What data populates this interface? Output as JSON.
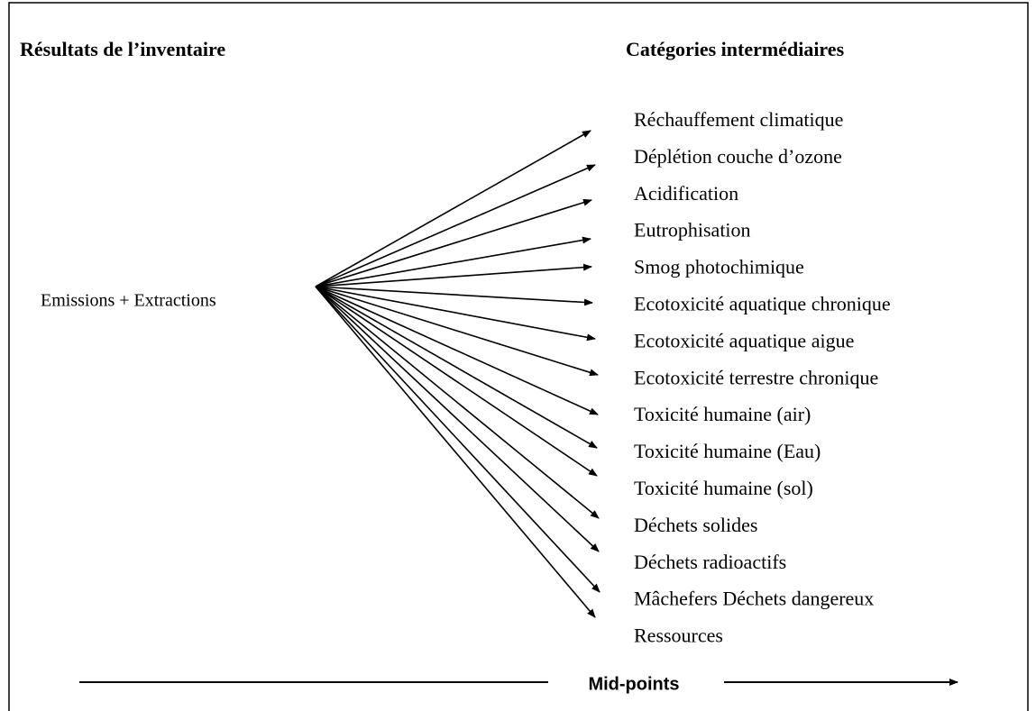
{
  "header": {
    "left_title": "Résultats de l’inventaire",
    "right_title": "Catégories intermédiaires"
  },
  "source": "Emissions + Extractions",
  "categories": [
    "Réchauffement climatique",
    "Déplétion couche d’ozone",
    "Acidification",
    "Eutrophisation",
    "Smog photochimique",
    "Ecotoxicité aquatique chronique",
    "Ecotoxicité aquatique aigue",
    "Ecotoxicité terrestre chronique",
    "Toxicité humaine (air)",
    "Toxicité humaine (Eau)",
    "Toxicité humaine (sol)",
    "Déchets solides",
    "Déchets radioactifs",
    "Mâchefers Déchets dangereux",
    "Ressources"
  ],
  "axis_label": "Mid-points"
}
